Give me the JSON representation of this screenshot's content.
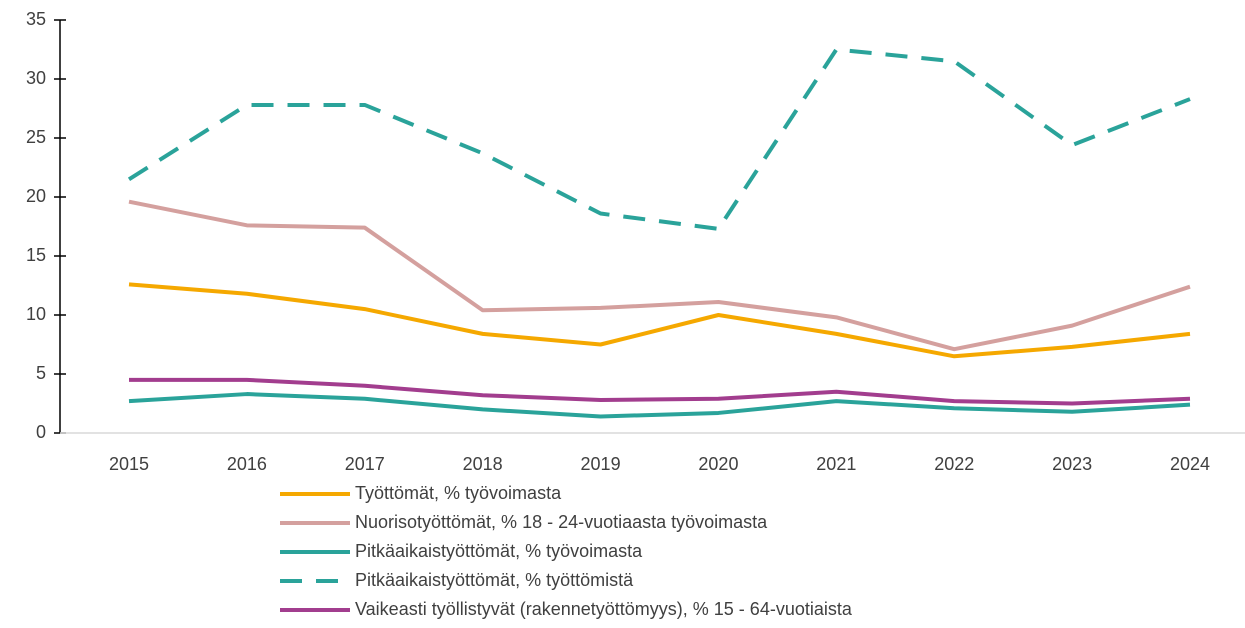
{
  "chart_data": {
    "type": "line",
    "categories": [
      "2015",
      "2016",
      "2017",
      "2018",
      "2019",
      "2020",
      "2021",
      "2022",
      "2023",
      "2024"
    ],
    "series": [
      {
        "name": "Työttömät, % työvoimasta",
        "color": "#f5a800",
        "dash": false,
        "values": [
          12.6,
          11.8,
          10.5,
          8.4,
          7.5,
          10.0,
          8.4,
          6.5,
          7.3,
          8.4
        ]
      },
      {
        "name": "Nuorisotyöttömät, % 18 - 24-vuotiaasta työvoimasta",
        "color": "#d4a09e",
        "dash": false,
        "values": [
          19.6,
          17.6,
          17.4,
          10.4,
          10.6,
          11.1,
          9.8,
          7.1,
          9.1,
          12.4
        ]
      },
      {
        "name": "Pitkäaikaistyöttömät, % työvoimasta",
        "color": "#2aa39a",
        "dash": false,
        "values": [
          2.7,
          3.3,
          2.9,
          2.0,
          1.4,
          1.7,
          2.7,
          2.1,
          1.8,
          2.4
        ]
      },
      {
        "name": "Pitkäaikaistyöttömät, % työttömistä",
        "color": "#2aa39a",
        "dash": true,
        "values": [
          21.5,
          27.8,
          27.8,
          23.7,
          18.6,
          17.3,
          32.5,
          31.5,
          24.4,
          28.3
        ]
      },
      {
        "name": "Vaikeasti työllistyvät (rakennetyöttömyys), % 15 - 64-vuotiaista",
        "color": "#a23d8e",
        "dash": false,
        "values": [
          4.5,
          4.5,
          4.0,
          3.2,
          2.8,
          2.9,
          3.5,
          2.7,
          2.5,
          2.9
        ]
      }
    ],
    "ylim": [
      0,
      35
    ],
    "yticks": [
      0,
      5,
      10,
      15,
      20,
      25,
      30,
      35
    ],
    "grid": false,
    "legend": "bottom"
  }
}
